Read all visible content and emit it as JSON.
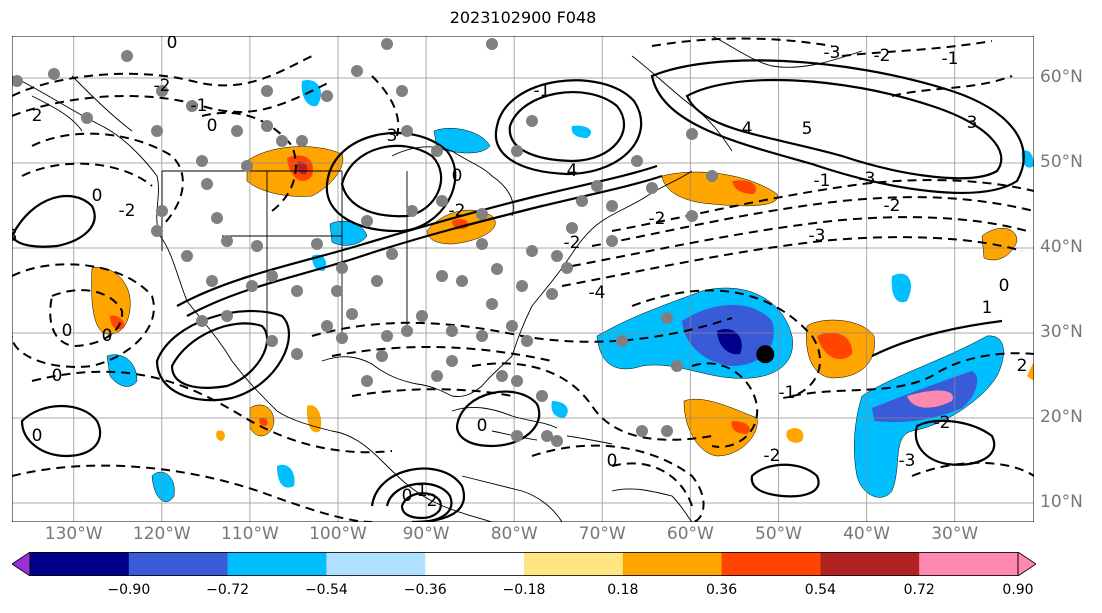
{
  "title": "2023102900 F048",
  "lat_labels": [
    {
      "text": "60°N",
      "lat": 60
    },
    {
      "text": "50°N",
      "lat": 50
    },
    {
      "text": "40°N",
      "lat": 40
    },
    {
      "text": "30°N",
      "lat": 30
    },
    {
      "text": "20°N",
      "lat": 20
    },
    {
      "text": "10°N",
      "lat": 10
    }
  ],
  "lon_labels": [
    {
      "text": "130°W",
      "lon": -130
    },
    {
      "text": "120°W",
      "lon": -120
    },
    {
      "text": "110°W",
      "lon": -110
    },
    {
      "text": "100°W",
      "lon": -100
    },
    {
      "text": "90°W",
      "lon": -90
    },
    {
      "text": "80°W",
      "lon": -80
    },
    {
      "text": "70°W",
      "lon": -70
    },
    {
      "text": "60°W",
      "lon": -60
    },
    {
      "text": "50°W",
      "lon": -50
    },
    {
      "text": "40°W",
      "lon": -40
    },
    {
      "text": "30°W",
      "lon": -30
    }
  ],
  "colorbar": {
    "ticks": [
      "−0.90",
      "−0.72",
      "−0.54",
      "−0.36",
      "−0.18",
      "0.18",
      "0.36",
      "0.54",
      "0.72",
      "0.90"
    ],
    "colors": [
      "#9b30d9",
      "#00008b",
      "#3a5bd8",
      "#00bfff",
      "#b0e0ff",
      "#ffffff",
      "#ffe680",
      "#ffa500",
      "#ff4500",
      "#b22222",
      "#ff88b0",
      "#ff88b0"
    ]
  },
  "contour_labels": [
    "0",
    "0",
    "-2",
    "-1",
    "2",
    "3",
    "4",
    "5",
    "3",
    "-1",
    "-2",
    "-3",
    "-3",
    "-4",
    "-2",
    "-1",
    "0",
    "-2",
    "0",
    "0",
    "-3",
    "0",
    "0",
    "1",
    "0",
    "2",
    "-1",
    "-2",
    "-3",
    "4",
    "-2",
    "0",
    "0",
    "1",
    "-2",
    "-1",
    "-2",
    "-3",
    "-2",
    "0",
    "2",
    "0"
  ],
  "marker": {
    "lat": 27.5,
    "lon": -51.5,
    "color": "#000000"
  }
}
